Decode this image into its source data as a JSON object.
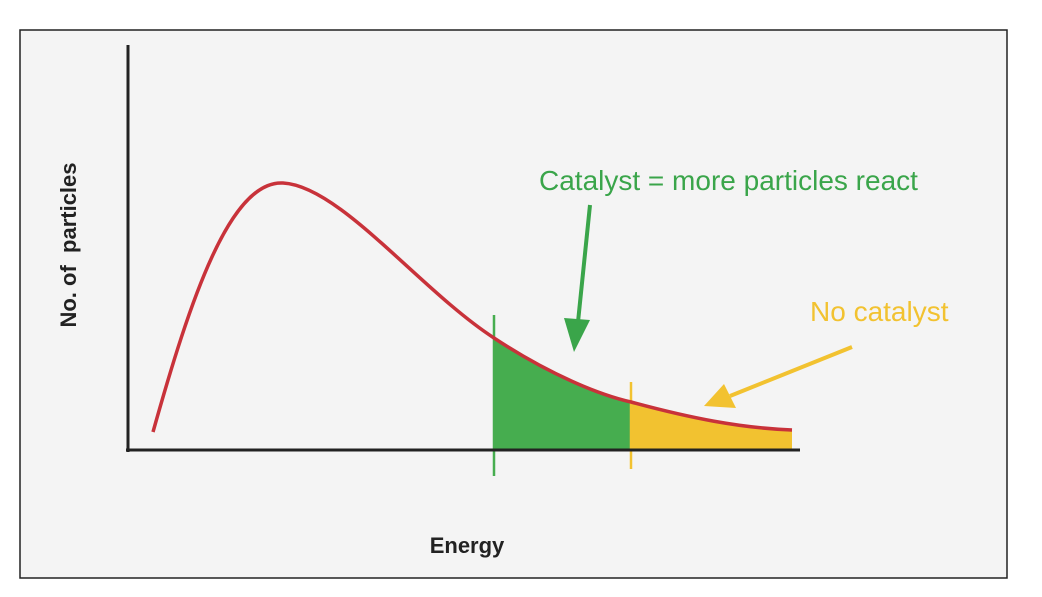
{
  "diagram": {
    "y_axis_label": "No. of  particles",
    "x_axis_label": "Energy",
    "annotations": [
      {
        "text": "Catalyst = more particles react",
        "color": "#3aa54a"
      },
      {
        "text": "No catalyst",
        "color": "#f2c230"
      }
    ]
  }
}
